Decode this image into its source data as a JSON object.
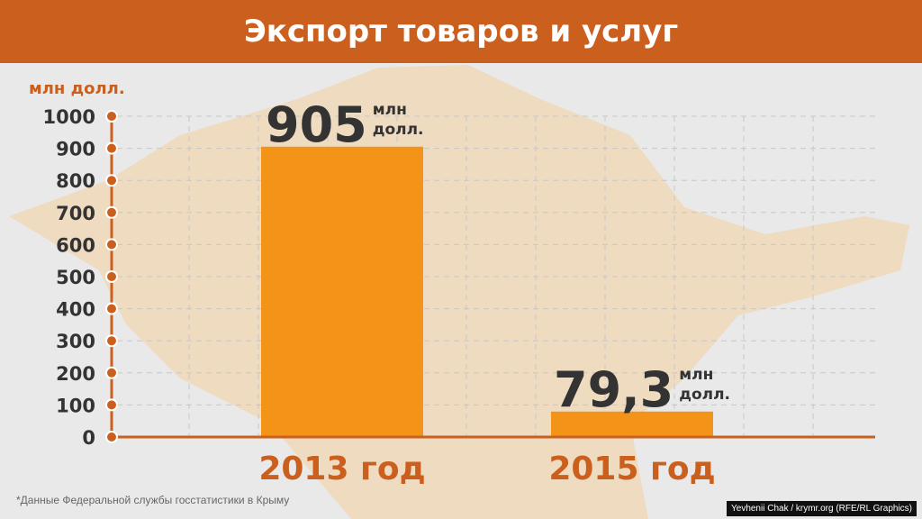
{
  "chart_data": {
    "type": "bar",
    "title": "Экспорт товаров и услуг",
    "ylabel": "млн долл.",
    "ylim": [
      0,
      1000
    ],
    "yticks": [
      0,
      100,
      200,
      300,
      400,
      500,
      600,
      700,
      800,
      900,
      1000
    ],
    "grid": true,
    "categories": [
      "2013 год",
      "2015 год"
    ],
    "values": [
      905,
      79.3
    ],
    "data_labels": [
      "905",
      "79,3"
    ],
    "data_label_unit": [
      "млн",
      "долл."
    ],
    "colors": {
      "bar": "#f39418",
      "accent": "#cb5f1d",
      "text": "#333333"
    }
  },
  "footnote": "*Данные Федеральной службы госстатистики в Крыму",
  "credit": "Yevhenii Chak / krymr.org (RFE/RL Graphics)"
}
